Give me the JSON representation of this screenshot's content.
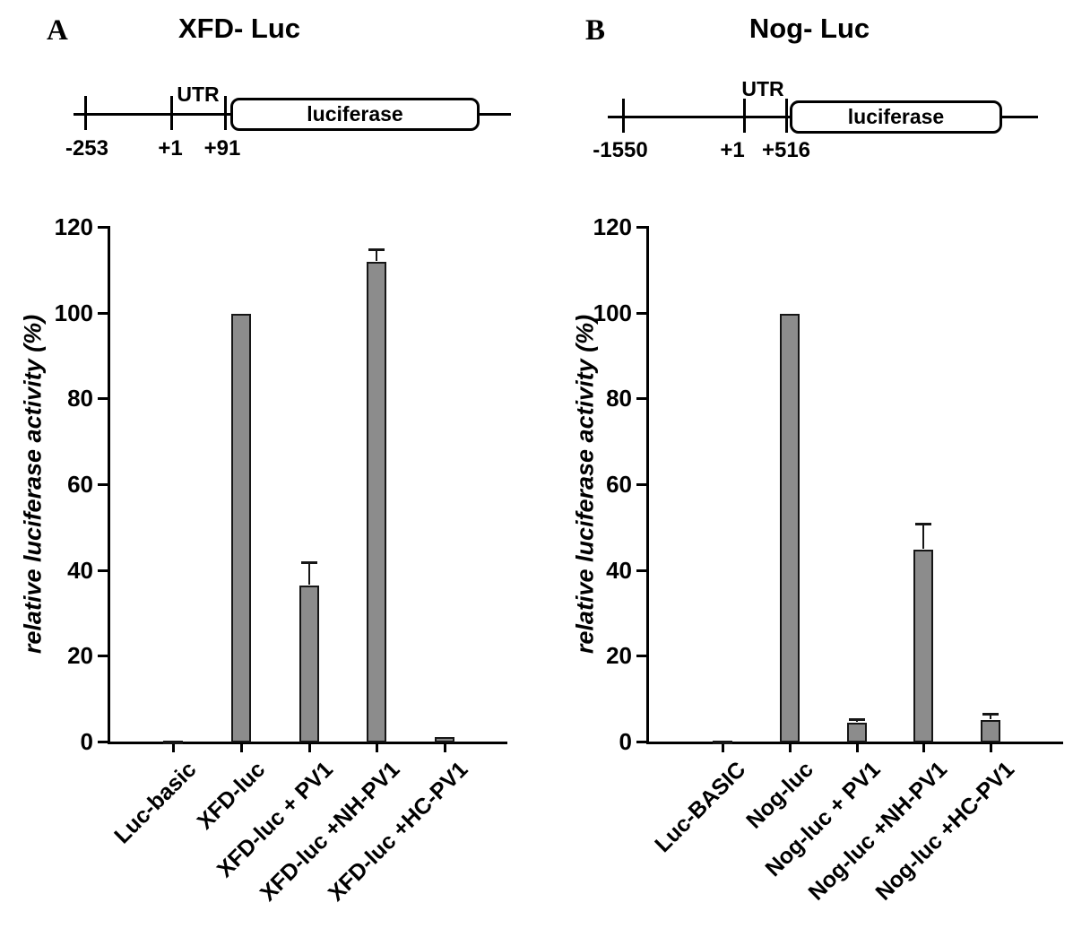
{
  "figure": {
    "panels": [
      {
        "letter": "A",
        "title": "XFD- Luc",
        "construct": {
          "utr_label": "UTR",
          "gene_label": "luciferase",
          "coords": [
            "-253",
            "+1",
            "+91"
          ]
        }
      },
      {
        "letter": "B",
        "title": "Nog- Luc",
        "construct": {
          "utr_label": "UTR",
          "gene_label": "luciferase",
          "coords": [
            "-1550",
            "+1",
            "+516"
          ]
        }
      }
    ]
  },
  "chart_data": [
    {
      "type": "bar",
      "title": "XFD- Luc",
      "categories": [
        "Luc-basic",
        "XFD-luc",
        "XFD-luc + PV1",
        "XFD-luc +NH-PV1",
        "XFD-luc +HC-PV1"
      ],
      "values": [
        0.5,
        100,
        36.5,
        112,
        1.3
      ],
      "errors": [
        0,
        0,
        5,
        2.5,
        0
      ],
      "xlabel": "",
      "ylabel": "relative luciferase activity (%)",
      "ylim": [
        0,
        120
      ],
      "yticks": [
        0,
        20,
        40,
        60,
        80,
        100,
        120
      ],
      "bar_color": "#8c8c8c",
      "grid": false,
      "legend": "none"
    },
    {
      "type": "bar",
      "title": "Nog- Luc",
      "categories": [
        "Luc-BASIC",
        "Nog-luc",
        "Nog-luc + PV1",
        "Nog-luc +NH-PV1",
        "Nog-luc +HC-PV1"
      ],
      "values": [
        0.5,
        100,
        4.5,
        45,
        5.2
      ],
      "errors": [
        0,
        0,
        0.5,
        5.5,
        1
      ],
      "xlabel": "",
      "ylabel": "relative luciferase activity (%)",
      "ylim": [
        0,
        120
      ],
      "yticks": [
        0,
        20,
        40,
        60,
        80,
        100,
        120
      ],
      "bar_color": "#8c8c8c",
      "grid": false,
      "legend": "none"
    }
  ]
}
